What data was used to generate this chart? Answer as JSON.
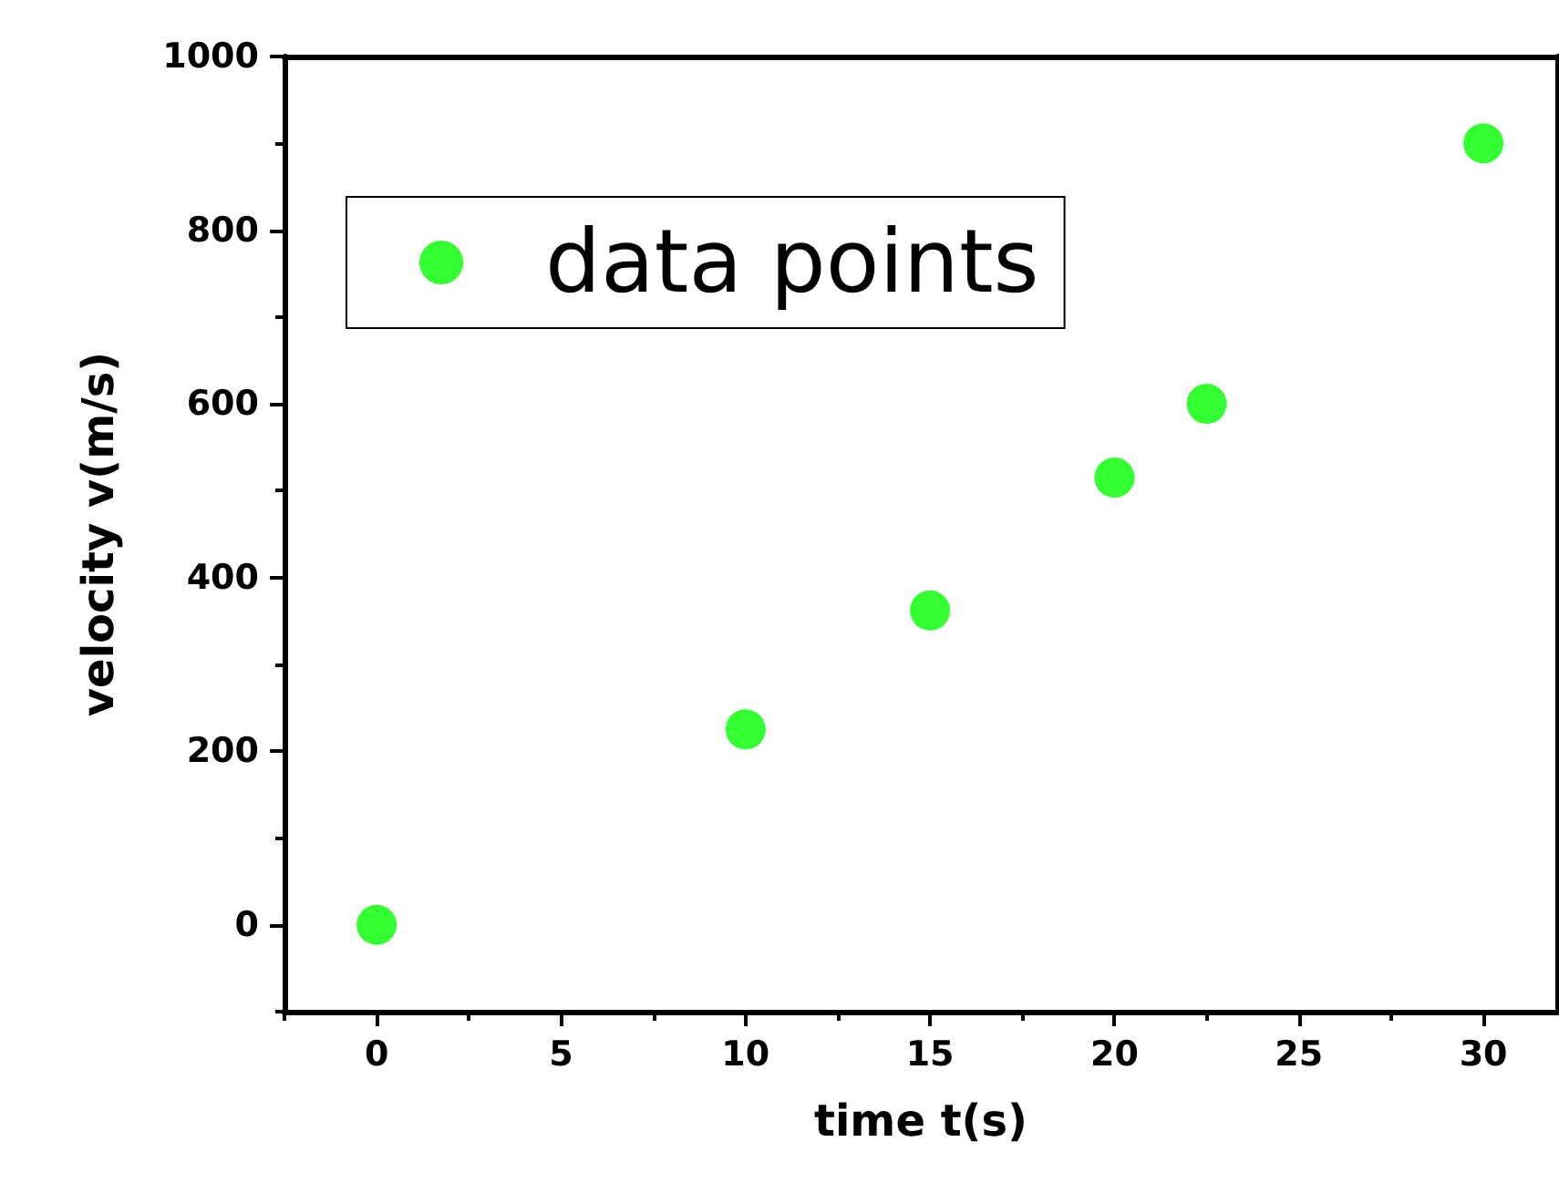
{
  "chart_data": {
    "type": "scatter",
    "xlabel": "time t(s)",
    "ylabel": "velocity v(m/s)",
    "x": [
      0,
      10,
      15,
      20,
      22.5,
      30
    ],
    "series": [
      {
        "name": "data points",
        "color": "#00ff00",
        "values": [
          0,
          225,
          362,
          515,
          600,
          900
        ]
      }
    ],
    "xlim": [
      -2.5,
      32
    ],
    "xticks": [
      0,
      5,
      10,
      15,
      20,
      25,
      30
    ],
    "ylim": [
      -100,
      1000
    ],
    "yticks": [
      0,
      200,
      400,
      600,
      800,
      1000
    ],
    "grid": false,
    "legend": "top left",
    "marker": "circle"
  }
}
